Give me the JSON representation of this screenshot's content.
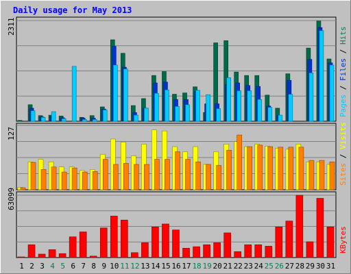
{
  "chart_data": {
    "type": "bar",
    "title": "Daily usage for May 2013",
    "categories": [
      "1",
      "2",
      "3",
      "4",
      "5",
      "6",
      "7",
      "8",
      "9",
      "10",
      "11",
      "12",
      "13",
      "14",
      "15",
      "16",
      "17",
      "18",
      "19",
      "20",
      "21",
      "22",
      "23",
      "24",
      "25",
      "26",
      "27",
      "28",
      "29",
      "30",
      "31"
    ],
    "weekend_days": [
      "4",
      "5",
      "11",
      "12",
      "18",
      "19",
      "25",
      "26"
    ],
    "panels": [
      {
        "id": "top",
        "max_label": "2311",
        "ymax": 2311,
        "legend": [
          "Pages",
          "Files",
          "Hits"
        ],
        "legend_colors": [
          "#00ccff",
          "#0033cc",
          "#00805a"
        ],
        "series": [
          {
            "name": "Hits",
            "color": "#006a4a",
            "values": [
              20,
              380,
              130,
              140,
              120,
              0,
              90,
              130,
              330,
              1870,
              1560,
              360,
              520,
              1050,
              1140,
              620,
              650,
              790,
              200,
              1800,
              1850,
              1130,
              1050,
              1050,
              600,
              300,
              1090,
              0,
              1680,
              2300,
              1430
            ]
          },
          {
            "name": "Files",
            "color": "#0033cc",
            "values": [
              0,
              300,
              100,
              110,
              80,
              0,
              70,
              70,
              280,
              1720,
              1240,
              200,
              300,
              880,
              900,
              500,
              500,
              680,
              400,
              400,
              840,
              880,
              820,
              800,
              350,
              130,
              940,
              0,
              1420,
              2150,
              1340
            ]
          },
          {
            "name": "Pages",
            "color": "#00ccff",
            "values": [
              0,
              240,
              90,
              220,
              60,
              1260,
              40,
              40,
              260,
              1290,
              1200,
              140,
              300,
              640,
              720,
              340,
              380,
              710,
              610,
              290,
              1000,
              700,
              700,
              500,
              320,
              140,
              620,
              0,
              1110,
              2080,
              1290
            ]
          }
        ]
      },
      {
        "id": "mid",
        "max_label": "127",
        "ymax": 127,
        "legend": [
          "Sites",
          "Visits"
        ],
        "legend_colors": [
          "#ff8000",
          "#ffff00"
        ],
        "series": [
          {
            "name": "Visits",
            "color": "#ffff00",
            "values": [
              5,
              55,
              60,
              55,
              45,
              45,
              38,
              40,
              70,
              100,
              94,
              67,
              90,
              118,
              116,
              85,
              75,
              85,
              50,
              75,
              90,
              95,
              85,
              90,
              86,
              82,
              80,
              90,
              55,
              55,
              50
            ]
          },
          {
            "name": "Sites",
            "color": "#ff8000",
            "values": [
              4,
              54,
              40,
              45,
              35,
              43,
              35,
              36,
              60,
              50,
              52,
              50,
              50,
              60,
              60,
              75,
              60,
              55,
              50,
              48,
              78,
              108,
              85,
              88,
              85,
              84,
              84,
              84,
              58,
              58,
              55
            ]
          }
        ]
      },
      {
        "id": "bot",
        "max_label": "63099",
        "ymax": 63099,
        "legend": [
          "KBytes"
        ],
        "legend_colors": [
          "#ff0000"
        ],
        "series": [
          {
            "name": "KBytes",
            "color": "#ff0000",
            "values": [
              500,
              13000,
              3500,
              8000,
              4000,
              21000,
              26000,
              1500,
              30000,
              42000,
              38000,
              5000,
              15000,
              31000,
              34000,
              28000,
              9500,
              11000,
              13000,
              15000,
              25000,
              6000,
              13000,
              13000,
              11500,
              31000,
              37000,
              63099,
              16000,
              60000,
              31000
            ]
          }
        ]
      }
    ]
  }
}
